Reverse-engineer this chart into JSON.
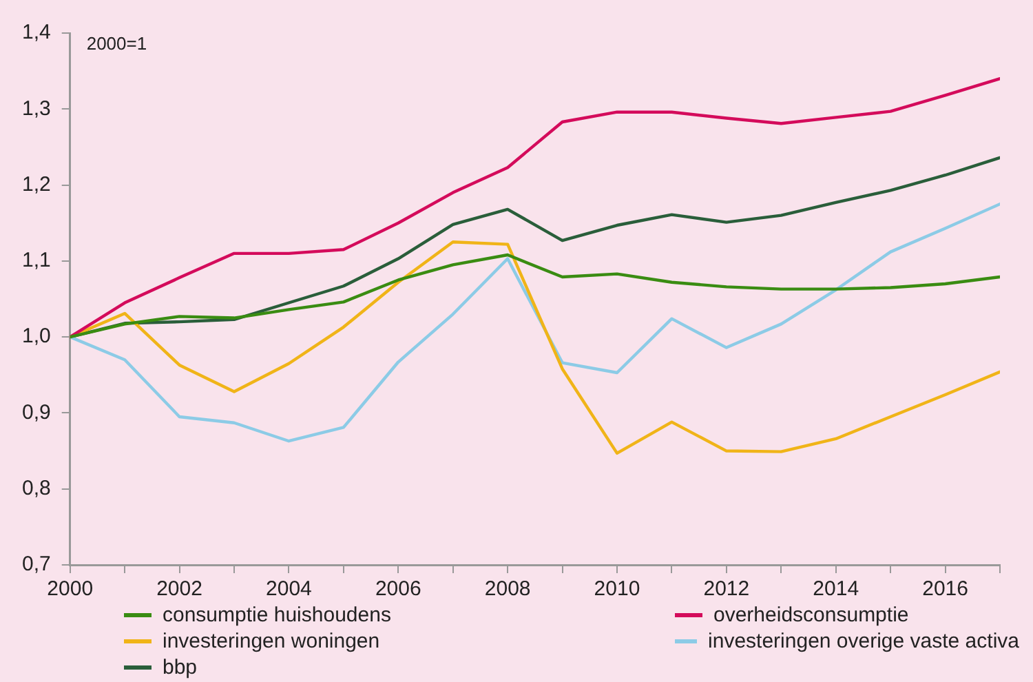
{
  "chart_data": {
    "type": "line",
    "annotations": [
      "2000=1"
    ],
    "x": [
      2000,
      2001,
      2002,
      2003,
      2004,
      2005,
      2006,
      2007,
      2008,
      2009,
      2010,
      2011,
      2012,
      2013,
      2014,
      2015,
      2016,
      2017
    ],
    "series": [
      {
        "name": "consumptie huishoudens",
        "color": "#3a8c12",
        "values": [
          1.0,
          1.017,
          1.027,
          1.025,
          1.036,
          1.046,
          1.075,
          1.095,
          1.108,
          1.079,
          1.083,
          1.072,
          1.066,
          1.063,
          1.063,
          1.065,
          1.07,
          1.079
        ]
      },
      {
        "name": "overheidsconsumptie",
        "color": "#d40b5b",
        "values": [
          1.0,
          1.045,
          1.078,
          1.11,
          1.11,
          1.115,
          1.15,
          1.19,
          1.223,
          1.283,
          1.296,
          1.296,
          1.288,
          1.281,
          1.289,
          1.297,
          1.318,
          1.34
        ]
      },
      {
        "name": "investeringen woningen",
        "color": "#f0b418",
        "values": [
          1.0,
          1.031,
          0.963,
          0.928,
          0.965,
          1.013,
          1.072,
          1.125,
          1.122,
          0.958,
          0.847,
          0.888,
          0.85,
          0.849,
          0.866,
          0.895,
          0.924,
          0.954
        ]
      },
      {
        "name": "investeringen overige vaste activa",
        "color": "#8ccbe6",
        "values": [
          1.0,
          0.97,
          0.895,
          0.887,
          0.863,
          0.881,
          0.967,
          1.03,
          1.103,
          0.966,
          0.953,
          1.024,
          0.986,
          1.017,
          1.062,
          1.112,
          1.143,
          1.175
        ]
      },
      {
        "name": "bbp",
        "color": "#2a5e3a",
        "values": [
          1.0,
          1.018,
          1.02,
          1.023,
          1.045,
          1.067,
          1.103,
          1.148,
          1.168,
          1.127,
          1.147,
          1.161,
          1.151,
          1.16,
          1.177,
          1.193,
          1.213,
          1.236
        ]
      }
    ],
    "xlim": [
      2000,
      2017
    ],
    "xticks": [
      2000,
      {
        "value": 2001,
        "label": null
      },
      2002,
      {
        "value": 2003,
        "label": null
      },
      2004,
      {
        "value": 2005,
        "label": null
      },
      2006,
      {
        "value": 2007,
        "label": null
      },
      2008,
      {
        "value": 2009,
        "label": null
      },
      2010,
      {
        "value": 2011,
        "label": null
      },
      2012,
      {
        "value": 2013,
        "label": null
      },
      2014,
      {
        "value": 2015,
        "label": null
      },
      2016,
      {
        "value": 2017,
        "label": null
      }
    ],
    "ylim": [
      0.7,
      1.4
    ],
    "yticks": [
      {
        "value": 0.7,
        "label": "0,7"
      },
      {
        "value": 0.8,
        "label": "0,8"
      },
      {
        "value": 0.9,
        "label": "0,9"
      },
      {
        "value": 1.0,
        "label": "1,0"
      },
      {
        "value": 1.1,
        "label": "1,1"
      },
      {
        "value": 1.2,
        "label": "1,2"
      },
      {
        "value": 1.3,
        "label": "1,3"
      },
      {
        "value": 1.4,
        "label": "1,4"
      }
    ],
    "grid": false,
    "legend": "bottom",
    "marker": "none",
    "line_style": "solid"
  }
}
